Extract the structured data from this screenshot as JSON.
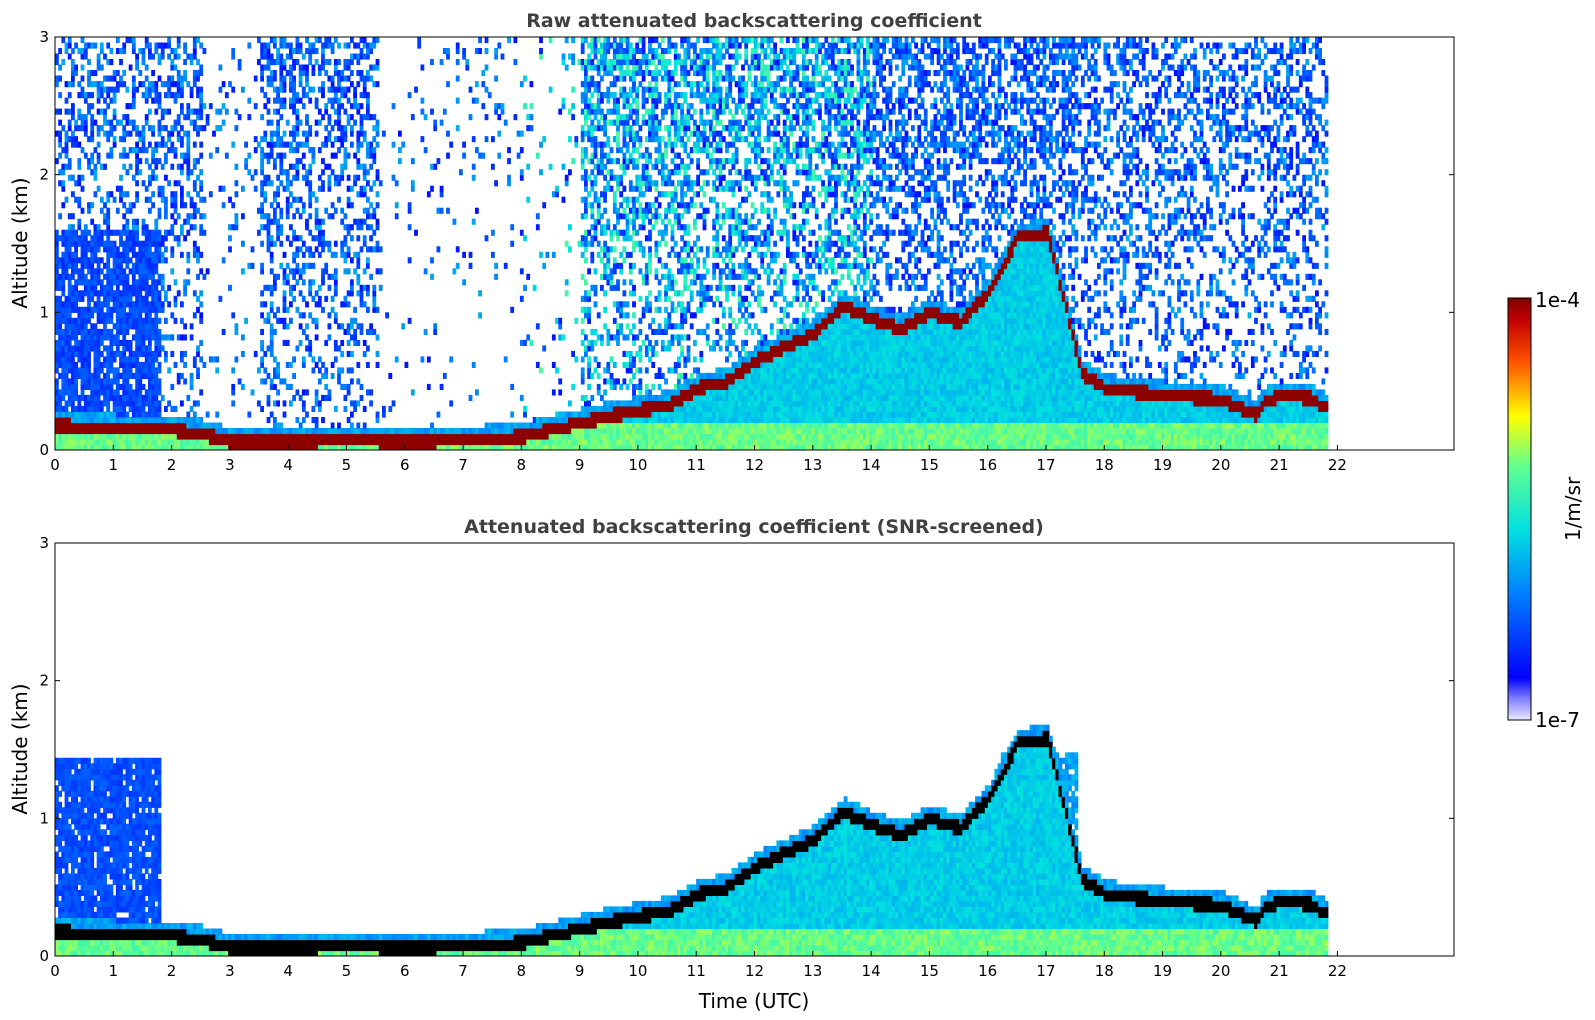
{
  "chart_data": [
    {
      "type": "heatmap",
      "title": "Raw attenuated backscattering coefficient",
      "xlabel": "",
      "ylabel": "Altitude (km)",
      "xlim": [
        0,
        24
      ],
      "ylim": [
        0,
        3
      ],
      "x_ticks": [
        "0",
        "1",
        "2",
        "3",
        "4",
        "5",
        "6",
        "7",
        "8",
        "9",
        "10",
        "11",
        "12",
        "13",
        "14",
        "15",
        "16",
        "17",
        "18",
        "19",
        "20",
        "21",
        "22"
      ],
      "y_ticks": [
        "0",
        "1",
        "2",
        "3"
      ],
      "data_end_time": 21.8,
      "layer_top_km": [
        [
          0,
          0.18
        ],
        [
          1,
          0.16
        ],
        [
          2,
          0.15
        ],
        [
          2.5,
          0.12
        ],
        [
          3,
          0.06
        ],
        [
          4,
          0.06
        ],
        [
          5,
          0.07
        ],
        [
          6,
          0.06
        ],
        [
          7,
          0.07
        ],
        [
          8,
          0.1
        ],
        [
          8.8,
          0.18
        ],
        [
          9.5,
          0.25
        ],
        [
          10.5,
          0.33
        ],
        [
          11,
          0.45
        ],
        [
          11.5,
          0.5
        ],
        [
          12,
          0.65
        ],
        [
          12.5,
          0.75
        ],
        [
          13,
          0.85
        ],
        [
          13.5,
          1.05
        ],
        [
          14,
          0.95
        ],
        [
          14.5,
          0.88
        ],
        [
          15,
          1.0
        ],
        [
          15.5,
          0.93
        ],
        [
          16,
          1.15
        ],
        [
          16.5,
          1.55
        ],
        [
          17,
          1.58
        ],
        [
          17.4,
          0.9
        ],
        [
          17.6,
          0.55
        ],
        [
          18,
          0.45
        ],
        [
          19,
          0.4
        ],
        [
          20,
          0.37
        ],
        [
          20.6,
          0.25
        ],
        [
          20.7,
          0.35
        ],
        [
          21,
          0.4
        ],
        [
          21.5,
          0.38
        ],
        [
          21.8,
          0.3
        ]
      ],
      "colorbar": {
        "label": "1/m/sr",
        "min_label": "1e-7",
        "max_label": "1e-4",
        "scale": "log"
      }
    },
    {
      "type": "heatmap",
      "title": "Attenuated backscattering coefficient (SNR-screened)",
      "xlabel": "Time (UTC)",
      "ylabel": "Altitude (km)",
      "xlim": [
        0,
        24
      ],
      "ylim": [
        0,
        3
      ],
      "x_ticks": [
        "0",
        "1",
        "2",
        "3",
        "4",
        "5",
        "6",
        "7",
        "8",
        "9",
        "10",
        "11",
        "12",
        "13",
        "14",
        "15",
        "16",
        "17",
        "18",
        "19",
        "20",
        "21",
        "22"
      ],
      "y_ticks": [
        "0",
        "1",
        "2",
        "3"
      ],
      "data_end_time": 21.8,
      "colorbar": {
        "label": "1/m/sr",
        "min_label": "1e-7",
        "max_label": "1e-4",
        "scale": "log"
      }
    }
  ]
}
